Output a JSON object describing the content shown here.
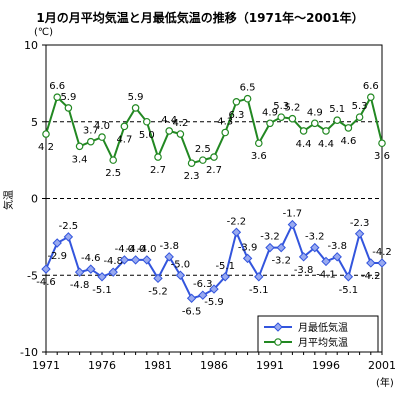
{
  "chart_data": {
    "type": "line",
    "title": "1月の月平均気温と月最低気温の推移（1971年～2001年）",
    "y_unit": "(℃)",
    "ylabel": "気温",
    "x_unit": "(年)",
    "ylim": [
      -10,
      10
    ],
    "y_ticks": [
      "10",
      "5",
      "0",
      "-5",
      "-10"
    ],
    "dashed_gridlines_at": [
      5,
      0,
      -5
    ],
    "x": [
      1971,
      1972,
      1973,
      1974,
      1975,
      1976,
      1977,
      1978,
      1979,
      1980,
      1981,
      1982,
      1983,
      1984,
      1985,
      1986,
      1987,
      1988,
      1989,
      1990,
      1991,
      1992,
      1993,
      1994,
      1995,
      1996,
      1997,
      1998,
      1999,
      2000,
      2001
    ],
    "x_tick_labels": [
      "1971",
      "1976",
      "1981",
      "1986",
      "1991",
      "1996",
      "2001"
    ],
    "legend_position": "bottom-right",
    "series": [
      {
        "name": "月最低気温",
        "color": "#3355dd",
        "marker": "diamond",
        "values": [
          -4.6,
          -2.9,
          -2.5,
          -4.8,
          -4.6,
          -5.1,
          -4.8,
          -4.0,
          -4.0,
          -4.0,
          -5.2,
          -3.8,
          -5.0,
          -6.5,
          -6.3,
          -5.9,
          -5.1,
          -2.2,
          -3.9,
          -5.1,
          -3.2,
          -3.2,
          -1.7,
          -3.8,
          -3.2,
          -4.1,
          -3.8,
          -5.1,
          -2.3,
          -4.2,
          -4.2
        ],
        "value_labels": [
          "-4.6",
          "-2.9",
          "-2.5",
          "-4.8",
          "-4.6",
          "-5.1",
          "-4.8",
          "-4.0",
          "-4.0",
          "-4.0",
          "-5.2",
          "-3.8",
          "-5.0",
          "-6.5",
          "-6.3",
          "-5.9",
          "-5.1",
          "-2.2",
          "-3.9",
          "-5.1",
          "-3.2",
          "-3.2",
          "-1.7",
          "-3.8",
          "-3.2",
          "-4.1",
          "-3.8",
          "-5.1",
          "-2.3",
          "-4.2",
          "-4.2"
        ]
      },
      {
        "name": "月平均気温",
        "color": "#228822",
        "marker": "circle",
        "values": [
          4.2,
          6.6,
          5.9,
          3.4,
          3.7,
          4.0,
          2.5,
          4.7,
          5.9,
          5.0,
          2.7,
          4.4,
          4.2,
          2.3,
          2.5,
          2.7,
          4.3,
          6.3,
          6.5,
          3.6,
          4.9,
          5.3,
          5.2,
          4.4,
          4.9,
          4.4,
          5.1,
          4.6,
          5.3,
          6.6,
          3.6
        ],
        "value_labels": [
          "4.2",
          "6.6",
          "5.9",
          "3.4",
          "3.7",
          "4.0",
          "2.5",
          "4.7",
          "5.9",
          "5.0",
          "2.7",
          "4.4",
          "4.2",
          "2.3",
          "2.5",
          "2.7",
          "4.3",
          "6.3",
          "6.5",
          "3.6",
          "4.9",
          "5.3",
          "5.2",
          "4.4",
          "4.9",
          "4.4",
          "5.1",
          "4.6",
          "5.3",
          "6.6",
          "3.6"
        ]
      }
    ]
  }
}
